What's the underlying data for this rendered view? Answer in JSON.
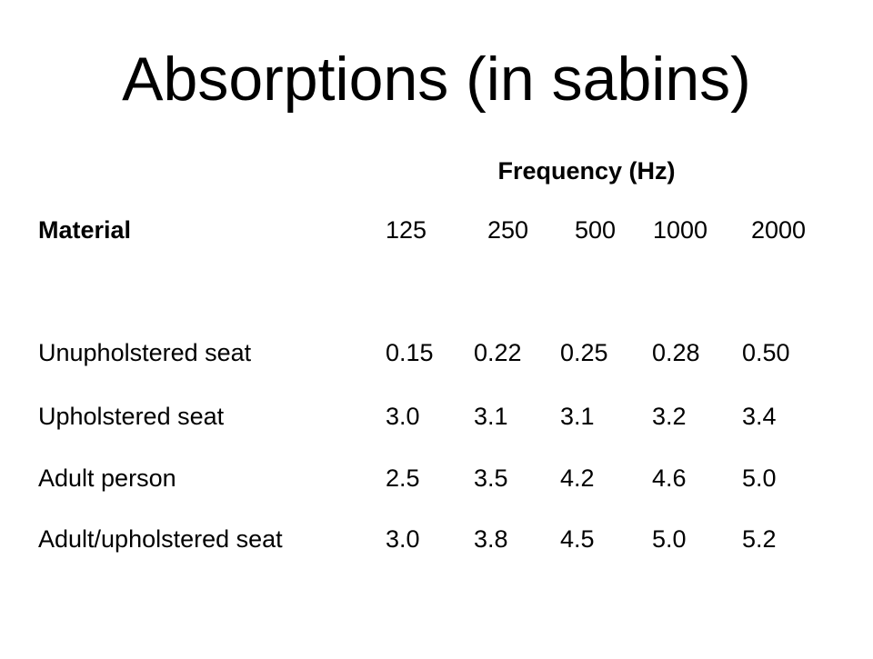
{
  "title": "Absorptions (in sabins)",
  "table": {
    "group_header": "Frequency (Hz)",
    "header": [
      "Material",
      "125",
      "250",
      "500",
      "1000",
      "2000"
    ],
    "rows": [
      [
        "Unupholstered seat",
        "0.15",
        "0.22",
        "0.25",
        "0.28",
        "0.50"
      ],
      [
        "Upholstered seat",
        "3.0",
        "3.1",
        "3.1",
        "3.2",
        "3.4"
      ],
      [
        "Adult person",
        "2.5",
        "3.5",
        "4.2",
        "4.6",
        "5.0"
      ],
      [
        "Adult/upholstered seat",
        "3.0",
        "3.8",
        "4.5",
        "5.0",
        "5.2"
      ]
    ]
  }
}
